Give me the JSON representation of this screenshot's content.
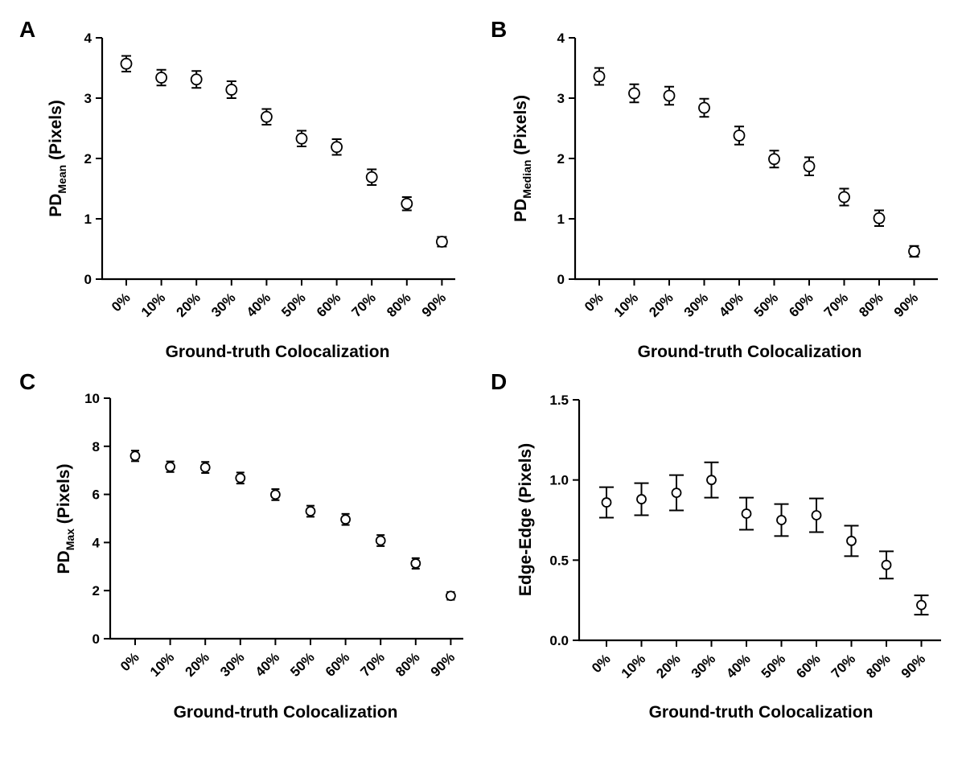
{
  "chart_data": [
    {
      "panel": "A",
      "type": "scatter",
      "categories": [
        "0%",
        "10%",
        "20%",
        "30%",
        "40%",
        "50%",
        "60%",
        "70%",
        "80%",
        "90%"
      ],
      "values": [
        3.57,
        3.34,
        3.31,
        3.14,
        2.69,
        2.33,
        2.19,
        1.69,
        1.25,
        0.62
      ],
      "errors": [
        0.13,
        0.13,
        0.14,
        0.14,
        0.13,
        0.13,
        0.13,
        0.13,
        0.11,
        0.08
      ],
      "xlabel": "Ground-truth Colocalization",
      "ylabel_main": "PD",
      "ylabel_sub": "Mean",
      "ylabel_rest": " (Pixels)",
      "ylim": [
        0,
        4
      ],
      "yticks": [
        "0",
        "1",
        "2",
        "3",
        "4"
      ],
      "ytick_values": [
        0,
        1,
        2,
        3,
        4
      ]
    },
    {
      "panel": "B",
      "type": "scatter",
      "categories": [
        "0%",
        "10%",
        "20%",
        "30%",
        "40%",
        "50%",
        "60%",
        "70%",
        "80%",
        "90%"
      ],
      "values": [
        3.36,
        3.08,
        3.04,
        2.84,
        2.38,
        1.99,
        1.87,
        1.36,
        1.01,
        0.46
      ],
      "errors": [
        0.14,
        0.15,
        0.15,
        0.15,
        0.15,
        0.14,
        0.15,
        0.14,
        0.13,
        0.09
      ],
      "xlabel": "Ground-truth Colocalization",
      "ylabel_main": "PD",
      "ylabel_sub": "Median",
      "ylabel_rest": " (Pixels)",
      "ylim": [
        0,
        4
      ],
      "yticks": [
        "0",
        "1",
        "2",
        "3",
        "4"
      ],
      "ytick_values": [
        0,
        1,
        2,
        3,
        4
      ]
    },
    {
      "panel": "C",
      "type": "scatter",
      "categories": [
        "0%",
        "10%",
        "20%",
        "30%",
        "40%",
        "50%",
        "60%",
        "70%",
        "80%",
        "90%"
      ],
      "values": [
        7.6,
        7.15,
        7.12,
        6.68,
        5.99,
        5.3,
        4.96,
        4.08,
        3.13,
        1.78
      ],
      "errors": [
        0.22,
        0.22,
        0.23,
        0.23,
        0.23,
        0.23,
        0.23,
        0.23,
        0.22,
        0.16
      ],
      "xlabel": "Ground-truth Colocalization",
      "ylabel_main": "PD",
      "ylabel_sub": "Max",
      "ylabel_rest": " (Pixels)",
      "ylim": [
        0,
        10
      ],
      "yticks": [
        "0",
        "2",
        "4",
        "6",
        "8",
        "10"
      ],
      "ytick_values": [
        0,
        2,
        4,
        6,
        8,
        10
      ]
    },
    {
      "panel": "D",
      "type": "scatter",
      "categories": [
        "0%",
        "10%",
        "20%",
        "30%",
        "40%",
        "50%",
        "60%",
        "70%",
        "80%",
        "90%"
      ],
      "values": [
        0.86,
        0.88,
        0.92,
        1.0,
        0.79,
        0.75,
        0.78,
        0.62,
        0.47,
        0.22
      ],
      "errors": [
        0.095,
        0.1,
        0.11,
        0.11,
        0.1,
        0.1,
        0.105,
        0.095,
        0.085,
        0.06
      ],
      "xlabel": "Ground-truth Colocalization",
      "ylabel_main": "Edge-Edge (Pixels)",
      "ylabel_sub": "",
      "ylabel_rest": "",
      "ylim": [
        0,
        1.5
      ],
      "yticks": [
        "0.0",
        "0.5",
        "1.0",
        "1.5"
      ],
      "ytick_values": [
        0,
        0.5,
        1.0,
        1.5
      ]
    }
  ]
}
